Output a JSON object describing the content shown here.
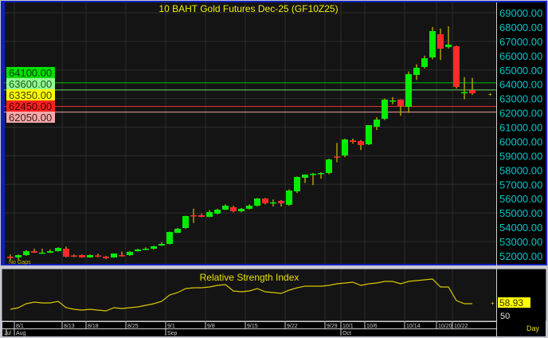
{
  "chart_data": {
    "type": "candlestick",
    "title": "10 BAHT Gold Futures Dec-25 (GF10Z25)",
    "annotation": "No Gaps",
    "period_label": "Day",
    "ylim": [
      51700,
      69600
    ],
    "y_ticks": [
      69000,
      68000,
      67000,
      66000,
      65000,
      64000,
      63000,
      62000,
      61000,
      60000,
      59000,
      58000,
      57000,
      56000,
      55000,
      54000,
      53000,
      52000
    ],
    "y_tick_suffix": ".00",
    "price_levels": [
      {
        "label": "64100.00",
        "value": 64100,
        "line_color": "#00c000",
        "bg": "#00e000",
        "fg": "#004000"
      },
      {
        "label": "63600.00",
        "value": 63600,
        "line_color": "#60e060",
        "bg": "#90ff90",
        "fg": "#205020"
      },
      {
        "label": "63350.00",
        "value": 63350,
        "line_color": null,
        "bg": "#ffff00",
        "fg": "#404000"
      },
      {
        "label": "62450.00",
        "value": 62450,
        "line_color": "#e03030",
        "bg": "#ff2020",
        "fg": "#400000"
      },
      {
        "label": "62050.00",
        "value": 62050,
        "line_color": "#f0a0a0",
        "bg": "#f4a8a8",
        "fg": "#402020"
      }
    ],
    "x_date_ticks": [
      {
        "label": "8/1",
        "index": 1
      },
      {
        "label": "8/13",
        "index": 7
      },
      {
        "label": "8/18",
        "index": 10
      },
      {
        "label": "8/25",
        "index": 15
      },
      {
        "label": "9/1",
        "index": 20
      },
      {
        "label": "9/8",
        "index": 25
      },
      {
        "label": "9/15",
        "index": 30
      },
      {
        "label": "9/22",
        "index": 35
      },
      {
        "label": "9/29",
        "index": 40
      },
      {
        "label": "10/1",
        "index": 42
      },
      {
        "label": "10/6",
        "index": 45
      },
      {
        "label": "10/14",
        "index": 50
      },
      {
        "label": "10/20",
        "index": 54
      },
      {
        "label": "10/22",
        "index": 56
      }
    ],
    "x_month_ticks": [
      {
        "label": "Jul",
        "index": 0
      },
      {
        "label": "Aug",
        "index": 1
      },
      {
        "label": "Sep",
        "index": 20
      },
      {
        "label": "Oct",
        "index": 42
      }
    ],
    "candles_ohlc": [
      [
        51950,
        52100,
        51700,
        51850
      ],
      [
        51890,
        52100,
        51700,
        52055
      ],
      [
        52055,
        52400,
        52000,
        52330
      ],
      [
        52330,
        52500,
        52200,
        52220
      ],
      [
        52220,
        52500,
        52200,
        52230
      ],
      [
        52220,
        52450,
        52200,
        52330
      ],
      [
        52330,
        52600,
        52300,
        52555
      ],
      [
        52500,
        52650,
        51900,
        51945
      ],
      [
        52030,
        52100,
        51900,
        52000
      ],
      [
        52055,
        52100,
        51880,
        51890
      ],
      [
        51890,
        52100,
        51880,
        52055
      ],
      [
        52030,
        52150,
        51900,
        52000
      ],
      [
        51945,
        52000,
        51780,
        51830
      ],
      [
        51890,
        52170,
        51880,
        52170
      ],
      [
        52055,
        52300,
        51950,
        52000
      ],
      [
        52055,
        52330,
        52000,
        52280
      ],
      [
        52330,
        52500,
        52300,
        52445
      ],
      [
        52445,
        52600,
        52400,
        52500
      ],
      [
        52500,
        52700,
        52450,
        52670
      ],
      [
        52725,
        52950,
        52700,
        52835
      ],
      [
        52835,
        53700,
        52800,
        53670
      ],
      [
        53615,
        53950,
        53600,
        53895
      ],
      [
        53950,
        54800,
        53900,
        54785
      ],
      [
        54840,
        55300,
        54300,
        54800
      ],
      [
        54840,
        54950,
        54700,
        54730
      ],
      [
        54730,
        55200,
        54700,
        55065
      ],
      [
        54950,
        55300,
        54900,
        55230
      ],
      [
        55230,
        55600,
        55200,
        55510
      ],
      [
        55400,
        55500,
        55050,
        55120
      ],
      [
        55120,
        55350,
        55050,
        55290
      ],
      [
        55290,
        55600,
        55250,
        55510
      ],
      [
        55510,
        56050,
        55450,
        56010
      ],
      [
        56010,
        56050,
        55600,
        55680
      ],
      [
        55700,
        55950,
        55450,
        55740
      ],
      [
        55845,
        55900,
        55450,
        55680
      ],
      [
        55570,
        56650,
        55500,
        56570
      ],
      [
        56515,
        57550,
        56400,
        57520
      ],
      [
        57460,
        57700,
        57100,
        57685
      ],
      [
        57685,
        57800,
        56950,
        57740
      ],
      [
        57740,
        57850,
        57400,
        57795
      ],
      [
        57795,
        58800,
        57700,
        58740
      ],
      [
        58950,
        59900,
        58550,
        58910
      ],
      [
        59020,
        60200,
        58900,
        60140
      ],
      [
        60080,
        60200,
        59850,
        59970
      ],
      [
        60025,
        60100,
        59400,
        59750
      ],
      [
        59800,
        61150,
        59750,
        61140
      ],
      [
        61030,
        61700,
        60800,
        61530
      ],
      [
        61585,
        63000,
        61500,
        62925
      ],
      [
        62810,
        63100,
        62600,
        62870
      ],
      [
        62925,
        62950,
        61800,
        62480
      ],
      [
        62420,
        64900,
        62000,
        64710
      ],
      [
        64650,
        65400,
        64300,
        65150
      ],
      [
        65210,
        66000,
        65100,
        65820
      ],
      [
        65880,
        68000,
        65750,
        67720
      ],
      [
        67500,
        67900,
        65700,
        66490
      ],
      [
        66600,
        68050,
        66500,
        66770
      ],
      [
        66660,
        66700,
        63700,
        63815
      ],
      [
        63425,
        64500,
        62950,
        63450
      ],
      [
        63590,
        64450,
        63250,
        63370
      ]
    ],
    "candle_up_color": "#00ee00",
    "candle_down_color": "#ff2a2a",
    "wick_color": "#b8a800",
    "rsi": {
      "title": "Relative Strength Index",
      "last_label": "58.93",
      "tick_label": "50",
      "color": "#d8c800",
      "values": [
        51.1,
        53.3,
        58.9,
        61.2,
        60.0,
        60.0,
        62.3,
        53.3,
        51.1,
        50.0,
        51.1,
        50.0,
        48.9,
        53.3,
        52.2,
        53.3,
        54.5,
        56.7,
        58.9,
        62.3,
        71.2,
        74.6,
        80.2,
        81.3,
        81.3,
        82.4,
        84.7,
        85.8,
        76.8,
        75.7,
        76.8,
        80.2,
        75.7,
        74.6,
        73.5,
        78.0,
        81.3,
        83.6,
        83.6,
        83.6,
        84.7,
        86.9,
        88.0,
        89.2,
        84.7,
        86.9,
        88.0,
        90.3,
        90.3,
        86.9,
        90.3,
        91.4,
        92.5,
        93.6,
        82.4,
        82.4,
        63.4,
        58.9,
        58.9
      ]
    }
  }
}
